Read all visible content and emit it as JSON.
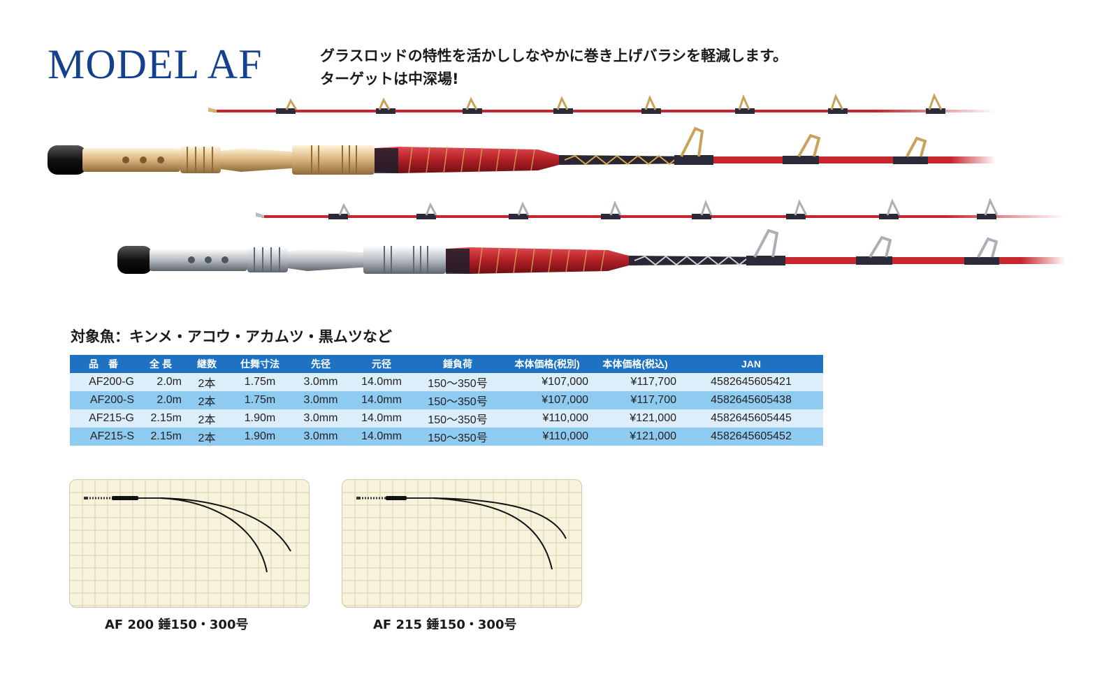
{
  "header": {
    "title": "MODEL AF",
    "tagline_line1": "グラスロッドの特性を活かししなやかに巻き上げバラシを軽減します。",
    "tagline_line2": "ターゲットは中深場!"
  },
  "target_fish": "対象魚：キンメ・アコウ・アカムツ・黒ムツなど",
  "colors": {
    "title_blue": "#13418f",
    "header_blue": "#1f72c2",
    "row_light": "#dceefa",
    "row_dark": "#8fcaf0",
    "rod_red": "#c8262e",
    "handle_gold": "#e2c48a",
    "handle_silver": "#c7ccd1",
    "chart_bg": "#f7f3dc"
  },
  "rods_image": {
    "rods": [
      {
        "model": "AF200-G",
        "handle": "gold"
      },
      {
        "model": "AF215-S",
        "handle": "silver"
      }
    ]
  },
  "spec_table": {
    "headers": [
      "品　番",
      "全 長",
      "継数",
      "仕舞寸法",
      "先径",
      "元径",
      "錘負荷",
      "本体価格(税別)",
      "本体価格(税込)",
      "JAN"
    ],
    "rows": [
      [
        "AF200-G",
        "2.0m",
        "2本",
        "1.75m",
        "3.0mm",
        "14.0mm",
        "150〜350号",
        "¥107,000",
        "¥117,700",
        "4582645605421"
      ],
      [
        "AF200-S",
        "2.0m",
        "2本",
        "1.75m",
        "3.0mm",
        "14.0mm",
        "150〜350号",
        "¥107,000",
        "¥117,700",
        "4582645605438"
      ],
      [
        "AF215-G",
        "2.15m",
        "2本",
        "1.90m",
        "3.0mm",
        "14.0mm",
        "150〜350号",
        "¥110,000",
        "¥121,000",
        "4582645605445"
      ],
      [
        "AF215-S",
        "2.15m",
        "2本",
        "1.90m",
        "3.0mm",
        "14.0mm",
        "150〜350号",
        "¥110,000",
        "¥121,000",
        "4582645605452"
      ]
    ]
  },
  "bend_charts": [
    {
      "label": "AF 200  錘150・300号"
    },
    {
      "label": "AF 215  錘150・300号"
    }
  ]
}
